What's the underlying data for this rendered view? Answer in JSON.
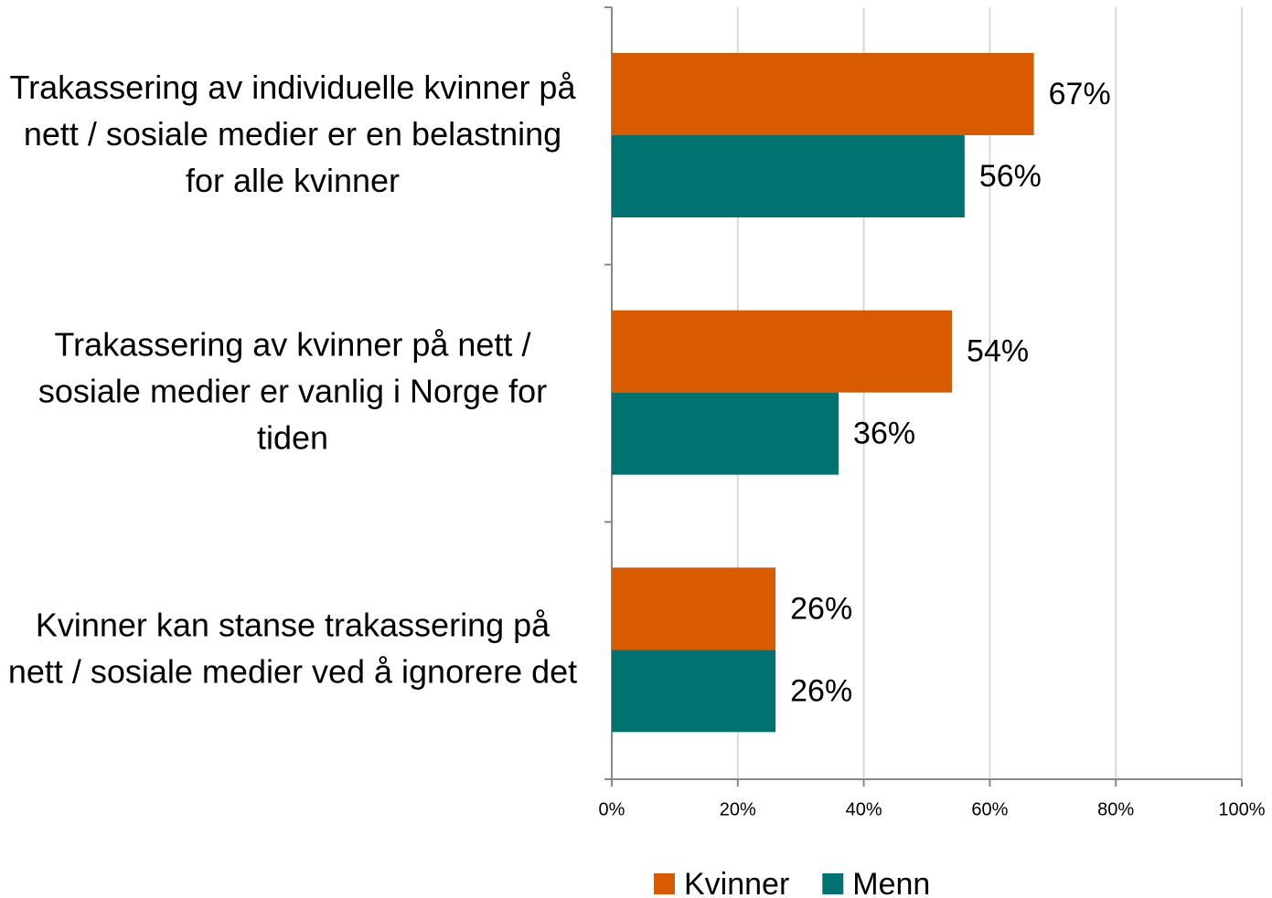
{
  "chart_data": {
    "type": "hbar",
    "categories": [
      "Trakassering av individuelle kvinner på nett / sosiale medier er en belastning for alle kvinner",
      "Trakassering av kvinner på nett / sosiale medier er vanlig i Norge for tiden",
      "Kvinner kan stanse trakassering på nett / sosiale medier ved å ignorere det"
    ],
    "series": [
      {
        "name": "Kvinner",
        "color": "#d95b00",
        "values": [
          67,
          54,
          26
        ],
        "value_labels": [
          "67%",
          "54%",
          "26%"
        ]
      },
      {
        "name": "Menn",
        "color": "#007370",
        "values": [
          56,
          36,
          26
        ],
        "value_labels": [
          "56%",
          "36%",
          "26%"
        ]
      }
    ],
    "xlim": [
      0,
      100
    ],
    "xticks": [
      {
        "value": 0,
        "label": "0%"
      },
      {
        "value": 20,
        "label": "20%"
      },
      {
        "value": 40,
        "label": "40%"
      },
      {
        "value": 60,
        "label": "60%"
      },
      {
        "value": 80,
        "label": "80%"
      },
      {
        "value": 100,
        "label": "100%"
      }
    ],
    "grid": true,
    "legend": "bottom"
  }
}
